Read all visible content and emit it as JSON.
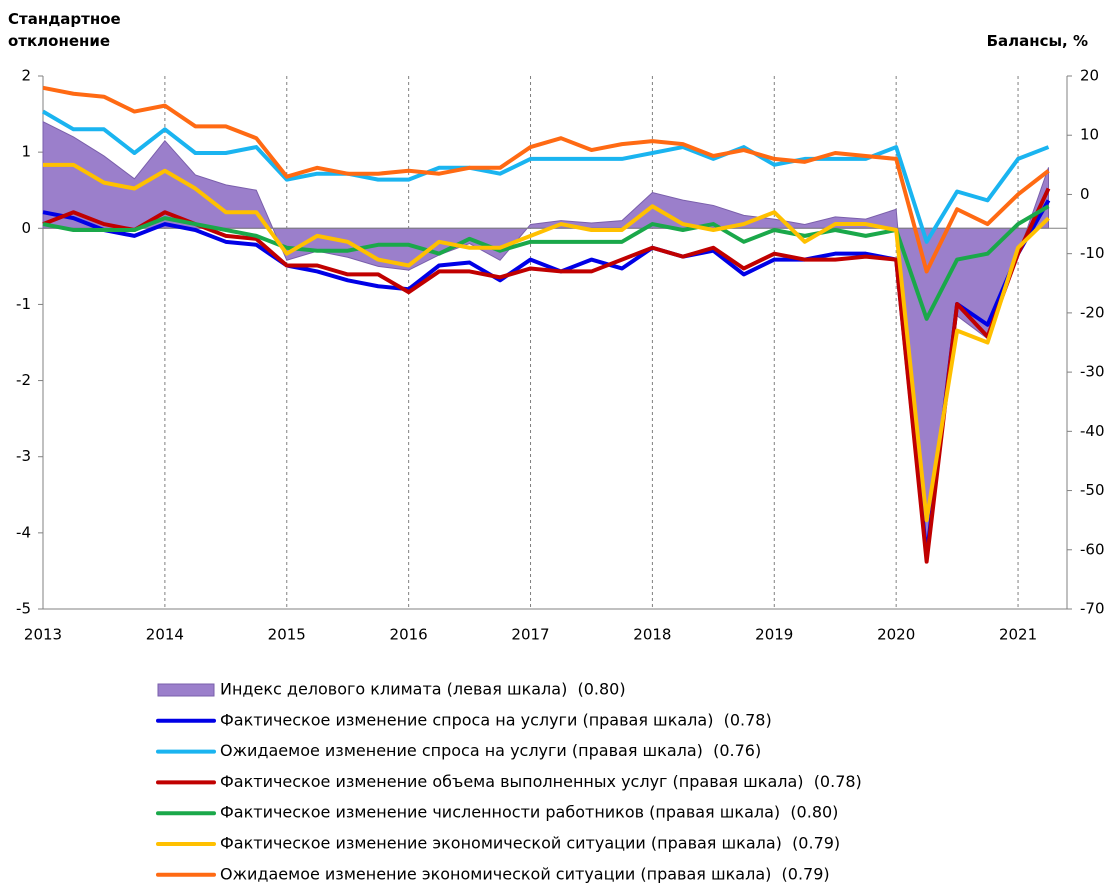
{
  "chart_data": {
    "type": "line",
    "y_label": "Стандартное отклонение",
    "y2_label": "Балансы, %",
    "categories": [
      "2013",
      null,
      null,
      null,
      "2014",
      null,
      null,
      null,
      "2015",
      null,
      null,
      null,
      "2016",
      null,
      null,
      null,
      "2017",
      null,
      null,
      null,
      "2018",
      null,
      null,
      null,
      "2019",
      null,
      null,
      null,
      "2020",
      null,
      null,
      null,
      "2021",
      null
    ],
    "ylim": [
      -5,
      2
    ],
    "yticks": [
      2,
      1,
      0,
      -1,
      -2,
      -3,
      -4,
      -5
    ],
    "y2lim": [
      -70,
      20
    ],
    "y2ticks": [
      20,
      10,
      0,
      -10,
      -20,
      -30,
      -40,
      -50,
      -60,
      -70
    ],
    "x_grid": true,
    "series": [
      {
        "name": "Индекс делового климата (левая шкала)  (0.80)",
        "type": "area",
        "color": "#9b7fcb",
        "axis": "y",
        "values": [
          1.4,
          1.2,
          0.95,
          0.65,
          1.15,
          0.7,
          0.57,
          0.5,
          -0.42,
          -0.3,
          -0.38,
          -0.5,
          -0.55,
          -0.35,
          -0.2,
          -0.42,
          0.05,
          0.1,
          0.07,
          0.1,
          0.47,
          0.37,
          0.3,
          0.17,
          0.12,
          0.05,
          0.15,
          0.12,
          0.25,
          -4.4,
          -1.15,
          -1.45,
          -0.35,
          0.8
        ]
      },
      {
        "name": "Фактическое изменение спроса на услуги (правая шкала)  (0.78)",
        "color": "#0000e6",
        "axis": "y2",
        "values": [
          -3,
          -4,
          -6,
          -7,
          -5,
          -6,
          -8,
          -8.5,
          -12,
          -13,
          -14.5,
          -15.5,
          -16,
          -12,
          -11.5,
          -14.5,
          -11,
          -13,
          -11,
          -12.5,
          -9,
          -10.5,
          -9.5,
          -13.5,
          -11,
          -11,
          -10,
          -10,
          -11,
          -61,
          -18.5,
          -22,
          -10,
          -1
        ]
      },
      {
        "name": "Ожидаемое изменение спроса на услуги (правая шкала)  (0.76)",
        "color": "#1ab4f0",
        "axis": "y2",
        "values": [
          14,
          11,
          11,
          7,
          11,
          7,
          7,
          8,
          2.5,
          3.5,
          3.5,
          2.5,
          2.5,
          4.5,
          4.5,
          3.5,
          6,
          6,
          6,
          6,
          7,
          8,
          6,
          8,
          5,
          6,
          6,
          6,
          8,
          -8,
          0.5,
          -1,
          6,
          8
        ]
      },
      {
        "name": "Фактическое изменение объема выполненных услуг (правая шкала)  (0.78)",
        "color": "#c00000",
        "axis": "y2",
        "values": [
          -5,
          -3,
          -5,
          -6,
          -3,
          -5,
          -7,
          -7.5,
          -12,
          -12,
          -13.5,
          -13.5,
          -16.5,
          -13,
          -13,
          -14,
          -12.5,
          -13,
          -13,
          -11,
          -9,
          -10.5,
          -9,
          -12.5,
          -10,
          -11,
          -11,
          -10.5,
          -11,
          -62,
          -18.5,
          -24,
          -10,
          1
        ]
      },
      {
        "name": "Фактическое изменение численности работников (правая шкала)  (0.80)",
        "color": "#1aa84a",
        "axis": "y2",
        "values": [
          -5,
          -6,
          -6,
          -6,
          -4,
          -5,
          -6,
          -7,
          -9,
          -9.5,
          -9.5,
          -8.5,
          -8.5,
          -10,
          -7.5,
          -9.5,
          -8,
          -8,
          -8,
          -8,
          -5,
          -6,
          -5,
          -8,
          -6,
          -7,
          -6,
          -7,
          -6,
          -21,
          -11,
          -10,
          -5,
          -2
        ]
      },
      {
        "name": "Фактическое изменение экономической ситуации (правая шкала)  (0.79)",
        "color": "#ffc000",
        "axis": "y2",
        "values": [
          5,
          5,
          2,
          1,
          4,
          1,
          -3,
          -3,
          -10,
          -7,
          -8,
          -11,
          -12,
          -8,
          -9,
          -9,
          -7,
          -5,
          -6,
          -6,
          -2,
          -5,
          -6,
          -5,
          -3,
          -8,
          -5,
          -5,
          -6,
          -55,
          -23,
          -25,
          -9,
          -4
        ]
      },
      {
        "name": "Ожидаемое изменение экономической ситуации (правая шкала)  (0.79)",
        "color": "#ff6a13",
        "axis": "y2",
        "values": [
          18,
          17,
          16.5,
          14,
          15,
          11.5,
          11.5,
          9.5,
          3,
          4.5,
          3.5,
          3.5,
          4,
          3.5,
          4.5,
          4.5,
          8,
          9.5,
          7.5,
          8.5,
          9,
          8.5,
          6.5,
          7.5,
          6,
          5.5,
          7,
          6.5,
          6,
          -13,
          -2.5,
          -5,
          0,
          4
        ]
      }
    ]
  }
}
